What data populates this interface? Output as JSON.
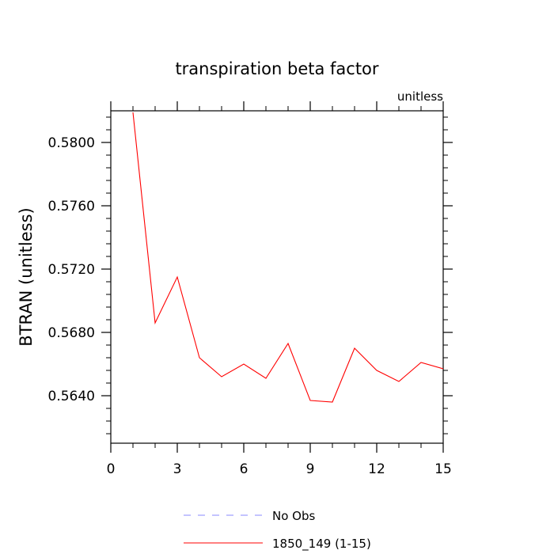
{
  "chart_data": {
    "type": "line",
    "title": "transpiration beta factor",
    "units_label": "unitless",
    "xlabel": "",
    "ylabel": "BTRAN  (unitless)",
    "xlim": [
      0,
      15
    ],
    "ylim": [
      0.561,
      0.582
    ],
    "x_ticks": [
      0,
      3,
      6,
      9,
      12,
      15
    ],
    "x_tick_labels": [
      "0",
      "3",
      "6",
      "9",
      "12",
      "15"
    ],
    "y_ticks": [
      0.564,
      0.568,
      0.572,
      0.576,
      0.58
    ],
    "y_tick_labels": [
      "0.5640",
      "0.5680",
      "0.5720",
      "0.5760",
      "0.5800"
    ],
    "grid": false,
    "legend_position": "bottom",
    "series": [
      {
        "name": "No Obs",
        "color": "#8888ff",
        "dash": true,
        "x": [],
        "y": []
      },
      {
        "name": "1850_149 (1-15)",
        "color": "#ff0000",
        "dash": false,
        "x": [
          1,
          2,
          3,
          4,
          5,
          6,
          7,
          8,
          9,
          10,
          11,
          12,
          13,
          14,
          15
        ],
        "y": [
          0.5819,
          0.5686,
          0.5715,
          0.5664,
          0.5652,
          0.566,
          0.5651,
          0.5673,
          0.5637,
          0.5636,
          0.567,
          0.5656,
          0.5649,
          0.5661,
          0.5657
        ]
      }
    ]
  }
}
